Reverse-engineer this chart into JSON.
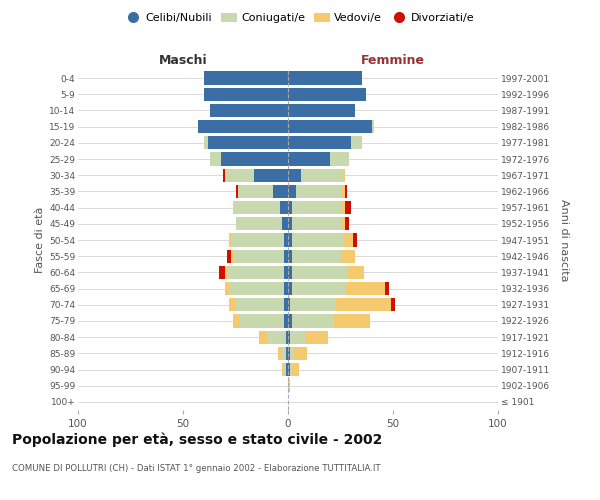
{
  "age_groups": [
    "100+",
    "95-99",
    "90-94",
    "85-89",
    "80-84",
    "75-79",
    "70-74",
    "65-69",
    "60-64",
    "55-59",
    "50-54",
    "45-49",
    "40-44",
    "35-39",
    "30-34",
    "25-29",
    "20-24",
    "15-19",
    "10-14",
    "5-9",
    "0-4"
  ],
  "birth_years": [
    "≤ 1901",
    "1902-1906",
    "1907-1911",
    "1912-1916",
    "1917-1921",
    "1922-1926",
    "1927-1931",
    "1932-1936",
    "1937-1941",
    "1942-1946",
    "1947-1951",
    "1952-1956",
    "1957-1961",
    "1962-1966",
    "1967-1971",
    "1972-1976",
    "1977-1981",
    "1982-1986",
    "1987-1991",
    "1992-1996",
    "1997-2001"
  ],
  "maschi": {
    "celibi": [
      0,
      0,
      1,
      1,
      1,
      2,
      2,
      2,
      2,
      2,
      2,
      3,
      4,
      7,
      16,
      32,
      38,
      43,
      37,
      40,
      40
    ],
    "coniugati": [
      0,
      0,
      1,
      2,
      9,
      21,
      23,
      26,
      27,
      24,
      25,
      22,
      22,
      17,
      14,
      5,
      2,
      0,
      0,
      0,
      0
    ],
    "vedovi": [
      0,
      0,
      1,
      2,
      4,
      3,
      3,
      2,
      1,
      1,
      1,
      0,
      0,
      0,
      0,
      0,
      0,
      0,
      0,
      0,
      0
    ],
    "divorziati": [
      0,
      0,
      0,
      0,
      0,
      0,
      0,
      0,
      3,
      2,
      0,
      0,
      0,
      1,
      1,
      0,
      0,
      0,
      0,
      0,
      0
    ]
  },
  "femmine": {
    "nubili": [
      0,
      0,
      1,
      1,
      1,
      2,
      1,
      2,
      2,
      2,
      2,
      2,
      2,
      4,
      6,
      20,
      30,
      40,
      32,
      37,
      35
    ],
    "coniugate": [
      0,
      0,
      1,
      2,
      7,
      20,
      22,
      25,
      26,
      23,
      24,
      23,
      23,
      21,
      20,
      9,
      5,
      1,
      0,
      0,
      0
    ],
    "vedove": [
      0,
      1,
      3,
      6,
      11,
      17,
      26,
      19,
      8,
      7,
      5,
      2,
      2,
      2,
      1,
      0,
      0,
      0,
      0,
      0,
      0
    ],
    "divorziate": [
      0,
      0,
      0,
      0,
      0,
      0,
      2,
      2,
      0,
      0,
      2,
      2,
      3,
      1,
      0,
      0,
      0,
      0,
      0,
      0,
      0
    ]
  },
  "colors": {
    "celibi_nubili": "#3a6ea5",
    "coniugati": "#c8d9b0",
    "vedovi": "#f5c96e",
    "divorziati": "#cc1100"
  },
  "xlim": 100,
  "title": "Popolazione per età, sesso e stato civile - 2002",
  "subtitle": "COMUNE DI POLLUTRI (CH) - Dati ISTAT 1° gennaio 2002 - Elaborazione TUTTITALIA.IT",
  "ylabel_left": "Fasce di età",
  "ylabel_right": "Anni di nascita",
  "xlabel_maschi": "Maschi",
  "xlabel_femmine": "Femmine",
  "legend_labels": [
    "Celibi/Nubili",
    "Coniugati/e",
    "Vedovi/e",
    "Divorziati/e"
  ],
  "bg_color": "#ffffff",
  "grid_color": "#cccccc"
}
